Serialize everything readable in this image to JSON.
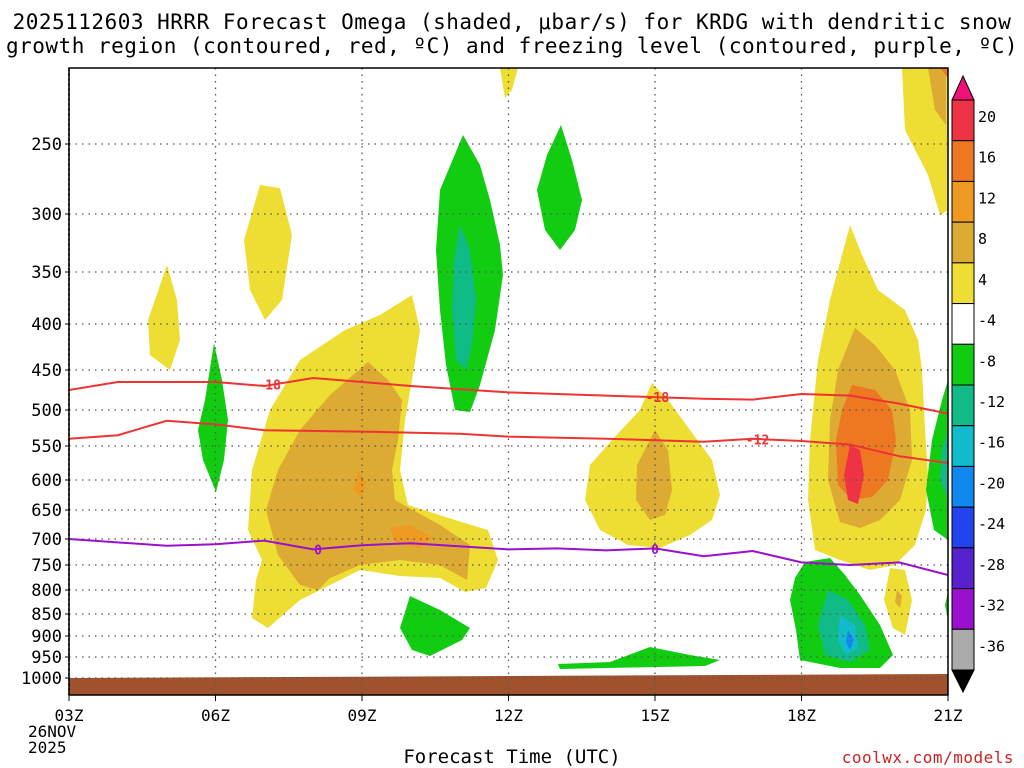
{
  "chart_data": {
    "type": "heatmap",
    "title_line1": "2025112603 HRRR Forecast Omega (shaded, μbar/s) for KRDG with dendritic snow",
    "title_line2": "growth region (contoured, red, ºC) and freezing level (contoured, purple, ºC)",
    "xlabel": "Forecast Time (UTC)",
    "ylabel": "",
    "x_ticks": [
      "03Z",
      "06Z",
      "09Z",
      "12Z",
      "15Z",
      "18Z",
      "21Z"
    ],
    "x_range_hours": [
      3,
      21
    ],
    "start_date_line1": "26NOV",
    "start_date_line2": "2025",
    "y_ticks": [
      "250",
      "300",
      "350",
      "400",
      "450",
      "500",
      "550",
      "600",
      "650",
      "700",
      "750",
      "800",
      "850",
      "900",
      "950",
      "1000"
    ],
    "y_range_hPa": [
      200,
      1020
    ],
    "colorbar": {
      "labels": [
        "20",
        "16",
        "12",
        "8",
        "4",
        "-4",
        "-8",
        "-12",
        "-16",
        "-20",
        "-24",
        "-28",
        "-32",
        "-36"
      ],
      "colors": [
        "#ee1177",
        "#ee3344",
        "#ee7722",
        "#ee9922",
        "#ddaa33",
        "#eedd33",
        "#ffffff",
        "#11cc11",
        "#11bb88",
        "#11bbcc",
        "#1188ee",
        "#2244ee",
        "#5522cc",
        "#9911cc",
        "#aaaaaa",
        "#000000"
      ]
    },
    "contour_labels": {
      "red_18_a": "-18",
      "red_18_b": "-18",
      "red_12": "-12",
      "purple_0_a": "0",
      "purple_0_b": "0"
    },
    "red_contour_minus18": [
      [
        3,
        475
      ],
      [
        4,
        465
      ],
      [
        6,
        465
      ],
      [
        7,
        470
      ],
      [
        8,
        460
      ],
      [
        10,
        470
      ],
      [
        12,
        478
      ],
      [
        14,
        482
      ],
      [
        16,
        486
      ],
      [
        17,
        487
      ],
      [
        18,
        480
      ],
      [
        19,
        482
      ],
      [
        20,
        492
      ],
      [
        21,
        505
      ]
    ],
    "red_contour_minus12": [
      [
        3,
        540
      ],
      [
        4,
        535
      ],
      [
        5,
        515
      ],
      [
        6,
        520
      ],
      [
        7,
        528
      ],
      [
        9,
        530
      ],
      [
        11,
        533
      ],
      [
        12,
        537
      ],
      [
        14,
        540
      ],
      [
        16,
        544
      ],
      [
        17,
        540
      ],
      [
        18,
        543
      ],
      [
        19,
        548
      ],
      [
        20,
        565
      ],
      [
        21,
        575
      ]
    ],
    "purple_contour_0": [
      [
        3,
        700
      ],
      [
        5,
        713
      ],
      [
        6,
        710
      ],
      [
        7,
        703
      ],
      [
        8,
        720
      ],
      [
        9,
        712
      ],
      [
        10,
        708
      ],
      [
        12,
        720
      ],
      [
        13,
        718
      ],
      [
        14,
        722
      ],
      [
        15,
        718
      ],
      [
        16,
        733
      ],
      [
        17,
        723
      ],
      [
        18,
        745
      ],
      [
        19,
        750
      ],
      [
        20,
        745
      ],
      [
        21,
        770
      ]
    ],
    "credit": "coolwx.com/models"
  }
}
